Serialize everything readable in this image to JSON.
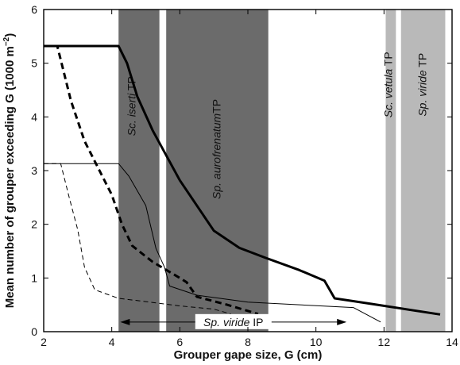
{
  "chart_data": {
    "type": "line",
    "xlabel": "Grouper gape size, G (cm)",
    "ylabel_main": "Mean number of grouper exceeding G (1000 m",
    "ylabel_sup": "−2",
    "ylabel_end": ")",
    "xlim": [
      2,
      14
    ],
    "ylim": [
      0,
      6
    ],
    "xticks": [
      2,
      4,
      6,
      8,
      10,
      12,
      14
    ],
    "yticks": [
      0,
      1,
      2,
      3,
      4,
      5,
      6
    ],
    "grid": false,
    "bands": [
      {
        "x0": 4.2,
        "x1": 5.4,
        "color": "#6b6b6b",
        "italic": "Sc. iserti",
        "suffix": " TP",
        "label_x": 4.6,
        "label_y": 4.2
      },
      {
        "x0": 5.6,
        "x1": 8.6,
        "color": "#6b6b6b",
        "italic": "Sp. aurofrenatum",
        "suffix": "TP",
        "label_x": 7.1,
        "label_y": 3.4
      },
      {
        "x0": 12.05,
        "x1": 12.35,
        "color": "#b9b9b9",
        "italic": "Sc. vetula",
        "suffix": " TP",
        "label_x": 12.15,
        "label_y": 4.6
      },
      {
        "x0": 12.5,
        "x1": 13.8,
        "color": "#b9b9b9",
        "italic": "Sp. viride",
        "suffix": " TP",
        "label_x": 13.15,
        "label_y": 4.6
      }
    ],
    "series": [
      {
        "style": "thick-solid",
        "x": [
          2.0,
          4.2,
          4.45,
          4.75,
          5.2,
          6.0,
          7.0,
          7.75,
          8.5,
          9.5,
          10.25,
          10.55,
          11.5,
          13.65
        ],
        "y": [
          5.32,
          5.32,
          5.0,
          4.38,
          3.75,
          2.82,
          1.88,
          1.56,
          1.38,
          1.15,
          0.95,
          0.62,
          0.53,
          0.32
        ]
      },
      {
        "style": "thick-dashed",
        "x": [
          2.0,
          2.4,
          2.8,
          3.2,
          3.6,
          4.0,
          4.3,
          4.6,
          5.2,
          6.0,
          6.2,
          6.5,
          7.4,
          8.3
        ],
        "y": [
          5.32,
          5.32,
          4.3,
          3.55,
          3.05,
          2.55,
          2.0,
          1.6,
          1.3,
          1.0,
          0.92,
          0.65,
          0.5,
          0.33
        ]
      },
      {
        "style": "thin-solid",
        "x": [
          2.0,
          4.2,
          4.5,
          5.0,
          5.3,
          5.55,
          5.7,
          6.5,
          8.0,
          11.1,
          11.9
        ],
        "y": [
          3.13,
          3.13,
          2.9,
          2.35,
          1.55,
          1.2,
          0.85,
          0.68,
          0.55,
          0.45,
          0.18
        ]
      },
      {
        "style": "thin-dashed",
        "x": [
          2.0,
          2.5,
          2.75,
          3.0,
          3.2,
          3.5,
          4.2,
          5.0,
          6.0,
          7.0,
          7.5
        ],
        "y": [
          3.13,
          3.13,
          2.5,
          1.9,
          1.2,
          0.78,
          0.62,
          0.56,
          0.48,
          0.42,
          0.33
        ]
      }
    ],
    "ip_annotation": {
      "italic": "Sp. viride",
      "suffix": " IP",
      "x0": 4.25,
      "x1": 10.9,
      "y": 0.18
    }
  }
}
